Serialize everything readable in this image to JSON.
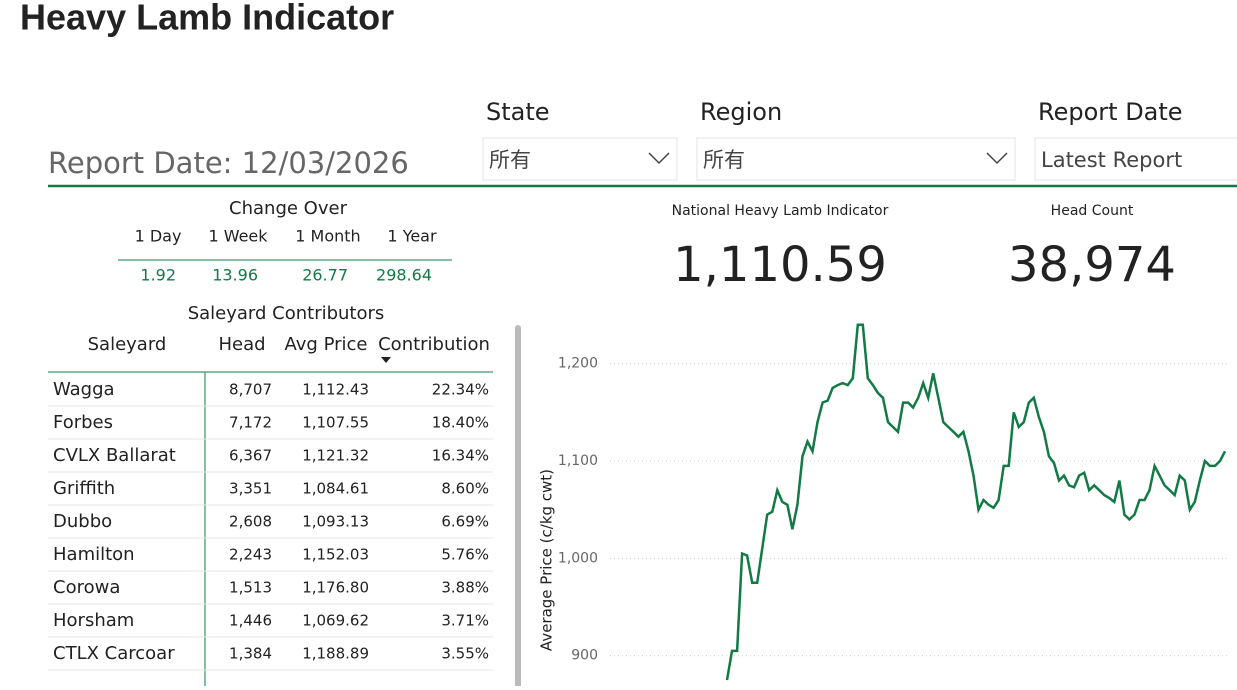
{
  "header": {
    "title": "Heavy Lamb Indicator",
    "report_date": "Report Date: 12/03/2026"
  },
  "filters": [
    {
      "label": "State",
      "value": "所有"
    },
    {
      "label": "Region",
      "value": "所有"
    },
    {
      "label": "Report Date",
      "value": "Latest Report"
    }
  ],
  "change_over": {
    "title": "Change Over",
    "periods": [
      "1 Day",
      "1 Week",
      "1 Month",
      "1 Year"
    ],
    "values": [
      "1.92",
      "13.96",
      "26.77",
      "298.64"
    ]
  },
  "contributors": {
    "title": "Saleyard Contributors",
    "columns": [
      "Saleyard",
      "Head",
      "Avg Price",
      "Contribution"
    ],
    "rows": [
      [
        "Wagga",
        "8,707",
        "1,112.43",
        "22.34%"
      ],
      [
        "Forbes",
        "7,172",
        "1,107.55",
        "18.40%"
      ],
      [
        "CVLX Ballarat",
        "6,367",
        "1,121.32",
        "16.34%"
      ],
      [
        "Griffith",
        "3,351",
        "1,084.61",
        "8.60%"
      ],
      [
        "Dubbo",
        "2,608",
        "1,093.13",
        "6.69%"
      ],
      [
        "Hamilton",
        "2,243",
        "1,152.03",
        "5.76%"
      ],
      [
        "Corowa",
        "1,513",
        "1,176.80",
        "3.88%"
      ],
      [
        "Horsham",
        "1,446",
        "1,069.62",
        "3.71%"
      ],
      [
        "CTLX Carcoar",
        "1,384",
        "1,188.89",
        "3.55%"
      ]
    ]
  },
  "kpis": [
    {
      "label": "National Heavy Lamb Indicator",
      "value": "1,110.59"
    },
    {
      "label": "Head Count",
      "value": "38,974"
    }
  ],
  "chart_data": {
    "type": "line",
    "y_label": "Average Price (c/kg cwt)",
    "color": "#117a45",
    "grid": true,
    "ylim": [
      872,
      1250
    ],
    "yticks": [
      {
        "value": 900,
        "label": "900"
      },
      {
        "value": 1000,
        "label": "1,000"
      },
      {
        "value": 1100,
        "label": "1,100"
      },
      {
        "value": 1200,
        "label": "1,200"
      }
    ],
    "values": [
      875,
      905,
      905,
      1005,
      1003,
      975,
      975,
      1010,
      1045,
      1048,
      1070,
      1058,
      1055,
      1030,
      1055,
      1105,
      1120,
      1110,
      1140,
      1160,
      1162,
      1175,
      1178,
      1180,
      1178,
      1185,
      1240,
      1240,
      1185,
      1178,
      1170,
      1165,
      1140,
      1135,
      1130,
      1160,
      1160,
      1155,
      1165,
      1180,
      1165,
      1190,
      1165,
      1140,
      1135,
      1130,
      1125,
      1130,
      1110,
      1085,
      1050,
      1060,
      1055,
      1052,
      1060,
      1095,
      1095,
      1150,
      1135,
      1140,
      1160,
      1165,
      1145,
      1130,
      1105,
      1098,
      1080,
      1085,
      1075,
      1073,
      1085,
      1088,
      1070,
      1075,
      1070,
      1065,
      1062,
      1058,
      1080,
      1045,
      1040,
      1045,
      1060,
      1060,
      1070,
      1095,
      1085,
      1075,
      1070,
      1065,
      1085,
      1080,
      1050,
      1058,
      1080,
      1100,
      1095,
      1095,
      1100,
      1110
    ]
  }
}
